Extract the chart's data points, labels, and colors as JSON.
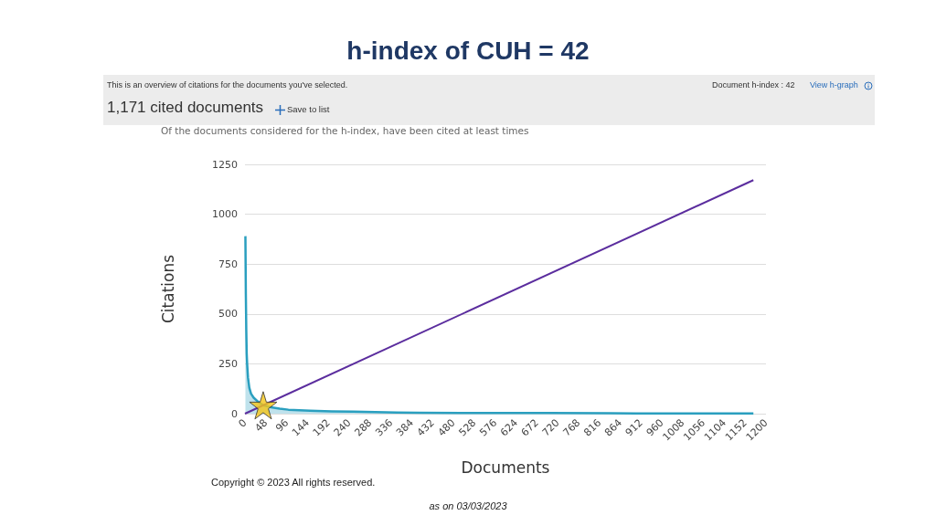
{
  "chart_data": {
    "type": "area",
    "title": "h-index of CUH = 42",
    "subtitle": "Of the documents considered for the h-index, have been cited at least times",
    "xlabel": "Documents",
    "ylabel": "Citations",
    "annotations": [
      "This is an overview of citations for the documents you've selected.",
      "Document h-index : 42",
      "View h-graph",
      "1,171 cited documents",
      "Save to list",
      "Copyright © 2023 All rights reserved.",
      "as on 03/03/2023"
    ],
    "xlim": [
      0,
      1200
    ],
    "xticks": [
      0,
      48,
      96,
      144,
      192,
      240,
      288,
      336,
      384,
      432,
      480,
      528,
      576,
      624,
      672,
      720,
      768,
      816,
      864,
      912,
      960,
      1008,
      1056,
      1104,
      1152,
      1200
    ],
    "ylim": [
      0,
      1250
    ],
    "yticks": [
      0,
      250,
      500,
      750,
      1000,
      1250
    ],
    "grid": "y",
    "marker": "none",
    "series": [
      {
        "color": "#2a9fbf",
        "x": [
          1,
          2,
          3,
          4,
          5,
          7,
          10,
          14,
          20,
          30,
          42,
          60,
          80,
          100,
          150,
          200,
          250,
          300,
          350,
          400,
          500,
          600,
          700,
          840,
          900,
          1000,
          1171
        ],
        "values": [
          890,
          600,
          420,
          300,
          250,
          180,
          130,
          100,
          80,
          60,
          42,
          32,
          25,
          20,
          15,
          12,
          10,
          8,
          6,
          5,
          4,
          3,
          3,
          2,
          1,
          1,
          1
        ]
      },
      {
        "type": "line",
        "color": "#5b2d9e",
        "x": [
          0,
          1171
        ],
        "values": [
          0,
          1171
        ]
      },
      {
        "type": "scatter",
        "color": "#f5c518",
        "marker": "star",
        "x": [
          42
        ],
        "values": [
          42
        ]
      }
    ]
  }
}
